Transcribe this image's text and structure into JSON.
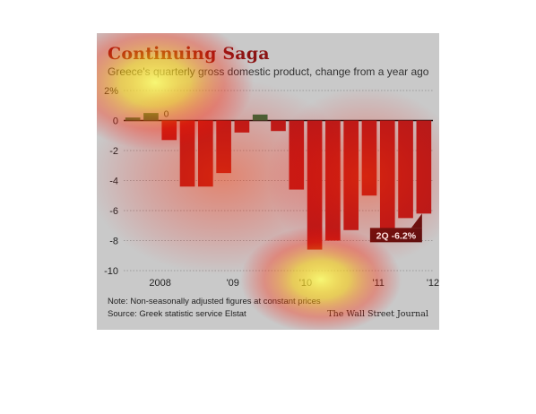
{
  "title": "Continuing Saga",
  "subtitle": "Greece's quarterly gross domestic product, change from a year ago",
  "note": "Note: Non-seasonally adjusted figures at constant prices",
  "source": "Source: Greek statistic service Elstat",
  "credit": "The Wall Street Journal",
  "colors": {
    "negative": "#b31b1b",
    "positive": "#2e6b3c",
    "background": "#c9c9c9",
    "callout": "#5a1010"
  },
  "chart_data": {
    "type": "bar",
    "ylim": [
      -10,
      2
    ],
    "yticks": [
      "2%",
      "0",
      "-2",
      "-4",
      "-6",
      "-8",
      "-10"
    ],
    "ytick_values": [
      2,
      0,
      -2,
      -4,
      -6,
      -8,
      -10
    ],
    "xtick_labels": [
      "2008",
      "'09",
      "'10",
      "'11",
      "'12"
    ],
    "xtick_positions": [
      1.5,
      5.5,
      9.5,
      13.5,
      16.5
    ],
    "grid": true,
    "values": [
      0.2,
      0.5,
      -1.3,
      -4.4,
      -4.4,
      -3.5,
      -0.8,
      0.4,
      -0.7,
      -4.6,
      -8.6,
      -8.0,
      -7.3,
      -5.0,
      -7.5,
      -6.5,
      -6.2
    ],
    "zero_label": "0",
    "zero_label_index": 1,
    "callout": {
      "text": "2Q -6.2%",
      "index": 16
    }
  }
}
